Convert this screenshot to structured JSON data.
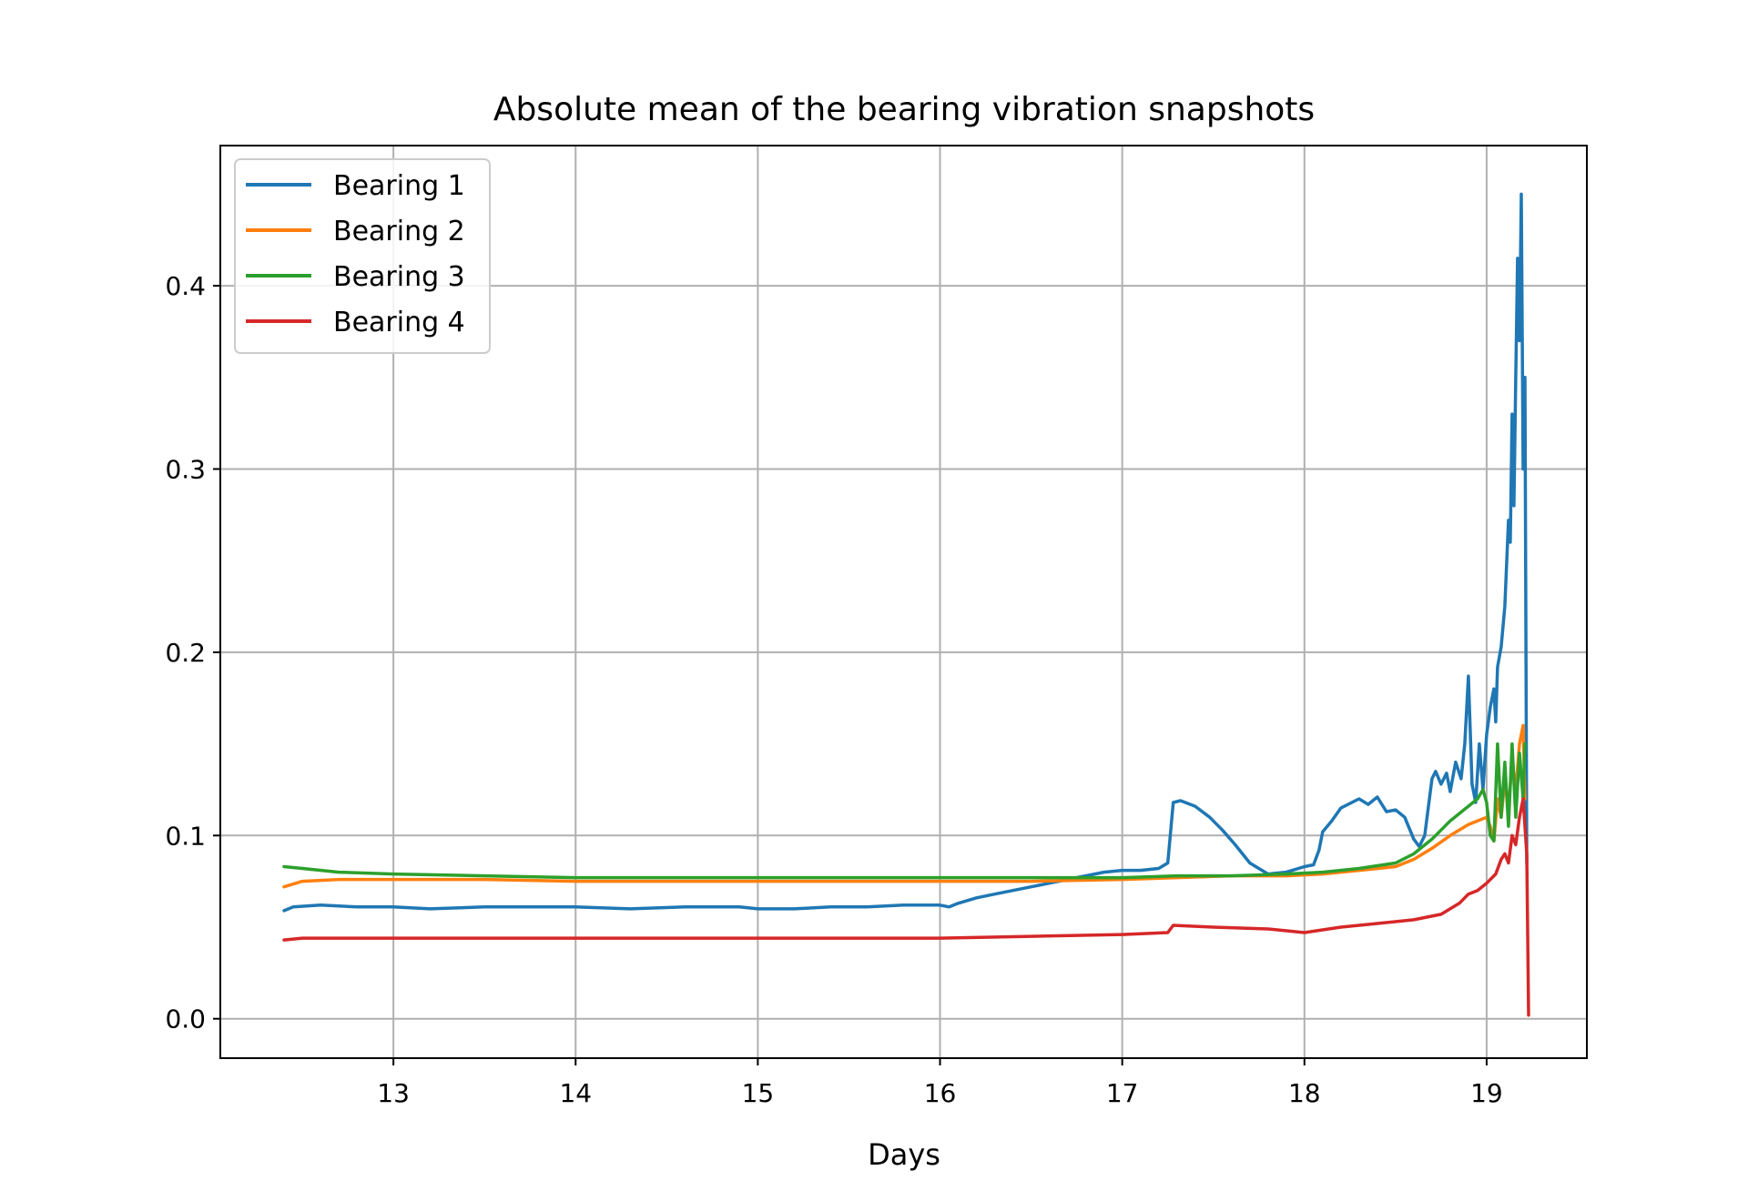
{
  "chart_data": {
    "type": "line",
    "title": "Absolute mean of the bearing vibration snapshots",
    "xlabel": "Days",
    "ylabel": "",
    "xlim": [
      12.05,
      19.55
    ],
    "ylim": [
      -0.0215,
      0.4765
    ],
    "xticks": [
      13,
      14,
      15,
      16,
      17,
      18,
      19
    ],
    "yticks": [
      0.0,
      0.1,
      0.2,
      0.3,
      0.4
    ],
    "xtick_labels": [
      "13",
      "14",
      "15",
      "16",
      "17",
      "18",
      "19"
    ],
    "ytick_labels": [
      "0.0",
      "0.1",
      "0.2",
      "0.3",
      "0.4"
    ],
    "grid": true,
    "legend_position": "upper-left",
    "series": [
      {
        "name": "Bearing 1",
        "color": "#1f77b4",
        "x": [
          12.4,
          12.45,
          12.6,
          12.8,
          13.0,
          13.2,
          13.5,
          13.8,
          14.0,
          14.3,
          14.6,
          14.9,
          15.0,
          15.2,
          15.4,
          15.6,
          15.8,
          16.0,
          16.05,
          16.1,
          16.2,
          16.3,
          16.4,
          16.5,
          16.6,
          16.7,
          16.8,
          16.9,
          17.0,
          17.1,
          17.2,
          17.25,
          17.28,
          17.32,
          17.4,
          17.48,
          17.55,
          17.62,
          17.7,
          17.8,
          17.9,
          18.0,
          18.05,
          18.08,
          18.1,
          18.15,
          18.2,
          18.3,
          18.35,
          18.4,
          18.45,
          18.5,
          18.55,
          18.6,
          18.63,
          18.66,
          18.7,
          18.72,
          18.75,
          18.78,
          18.8,
          18.83,
          18.86,
          18.88,
          18.9,
          18.92,
          18.94,
          18.96,
          18.98,
          19.0,
          19.02,
          19.04,
          19.05,
          19.06,
          19.08,
          19.1,
          19.12,
          19.13,
          19.14,
          19.15,
          19.16,
          19.17,
          19.18,
          19.19,
          19.2,
          19.21,
          19.22
        ],
        "y": [
          0.059,
          0.061,
          0.062,
          0.061,
          0.061,
          0.06,
          0.061,
          0.061,
          0.061,
          0.06,
          0.061,
          0.061,
          0.06,
          0.06,
          0.061,
          0.061,
          0.062,
          0.062,
          0.061,
          0.063,
          0.066,
          0.068,
          0.07,
          0.072,
          0.074,
          0.076,
          0.078,
          0.08,
          0.081,
          0.081,
          0.082,
          0.085,
          0.118,
          0.119,
          0.116,
          0.11,
          0.103,
          0.095,
          0.085,
          0.079,
          0.08,
          0.083,
          0.084,
          0.092,
          0.102,
          0.108,
          0.115,
          0.12,
          0.117,
          0.121,
          0.113,
          0.114,
          0.11,
          0.098,
          0.094,
          0.1,
          0.131,
          0.135,
          0.128,
          0.134,
          0.124,
          0.14,
          0.131,
          0.15,
          0.187,
          0.128,
          0.118,
          0.15,
          0.125,
          0.155,
          0.17,
          0.18,
          0.162,
          0.192,
          0.203,
          0.225,
          0.272,
          0.26,
          0.33,
          0.28,
          0.35,
          0.415,
          0.37,
          0.45,
          0.3,
          0.35,
          0.085
        ]
      },
      {
        "name": "Bearing 2",
        "color": "#ff7f0e",
        "x": [
          12.4,
          12.5,
          12.7,
          13.0,
          13.5,
          14.0,
          14.5,
          15.0,
          15.5,
          16.0,
          16.5,
          17.0,
          17.3,
          17.6,
          17.9,
          18.1,
          18.3,
          18.5,
          18.6,
          18.7,
          18.8,
          18.9,
          18.95,
          19.0,
          19.02,
          19.04,
          19.06,
          19.08,
          19.1,
          19.12,
          19.14,
          19.16,
          19.18,
          19.2,
          19.21
        ],
        "y": [
          0.072,
          0.075,
          0.076,
          0.076,
          0.076,
          0.075,
          0.075,
          0.075,
          0.075,
          0.075,
          0.075,
          0.076,
          0.077,
          0.078,
          0.078,
          0.079,
          0.081,
          0.083,
          0.087,
          0.093,
          0.1,
          0.106,
          0.108,
          0.11,
          0.105,
          0.097,
          0.12,
          0.11,
          0.13,
          0.115,
          0.14,
          0.125,
          0.15,
          0.16,
          0.12
        ]
      },
      {
        "name": "Bearing 3",
        "color": "#2ca02c",
        "x": [
          12.4,
          12.5,
          12.7,
          13.0,
          13.5,
          14.0,
          14.5,
          15.0,
          15.5,
          16.0,
          16.5,
          17.0,
          17.3,
          17.6,
          17.9,
          18.1,
          18.3,
          18.5,
          18.6,
          18.7,
          18.8,
          18.9,
          18.95,
          18.98,
          19.0,
          19.02,
          19.04,
          19.06,
          19.08,
          19.1,
          19.12,
          19.14,
          19.16,
          19.18,
          19.2,
          19.21
        ],
        "y": [
          0.083,
          0.082,
          0.08,
          0.079,
          0.078,
          0.077,
          0.077,
          0.077,
          0.077,
          0.077,
          0.077,
          0.077,
          0.078,
          0.078,
          0.079,
          0.08,
          0.082,
          0.085,
          0.09,
          0.098,
          0.108,
          0.116,
          0.12,
          0.125,
          0.118,
          0.1,
          0.097,
          0.15,
          0.11,
          0.14,
          0.105,
          0.15,
          0.11,
          0.145,
          0.12,
          0.15
        ]
      },
      {
        "name": "Bearing 4",
        "color": "#d62728",
        "x": [
          12.4,
          12.5,
          13.0,
          13.5,
          14.0,
          14.5,
          15.0,
          15.5,
          16.0,
          16.5,
          17.0,
          17.25,
          17.28,
          17.5,
          17.8,
          18.0,
          18.2,
          18.4,
          18.6,
          18.75,
          18.85,
          18.9,
          18.95,
          19.0,
          19.05,
          19.08,
          19.1,
          19.12,
          19.14,
          19.16,
          19.18,
          19.2,
          19.22,
          19.23
        ],
        "y": [
          0.043,
          0.044,
          0.044,
          0.044,
          0.044,
          0.044,
          0.044,
          0.044,
          0.044,
          0.045,
          0.046,
          0.047,
          0.051,
          0.05,
          0.049,
          0.047,
          0.05,
          0.052,
          0.054,
          0.057,
          0.063,
          0.068,
          0.07,
          0.074,
          0.079,
          0.087,
          0.09,
          0.085,
          0.1,
          0.095,
          0.11,
          0.12,
          0.09,
          0.002
        ]
      }
    ]
  }
}
